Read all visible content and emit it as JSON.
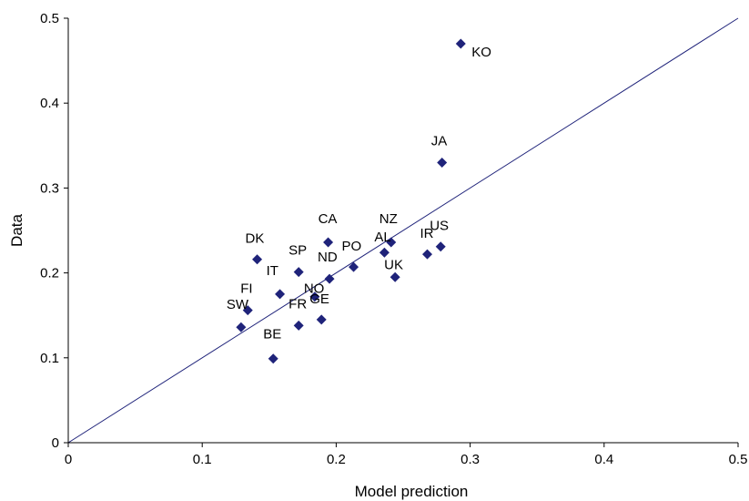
{
  "chart_data": {
    "type": "scatter",
    "title": "",
    "xlabel": "Model prediction",
    "ylabel": "Data",
    "xlim": [
      0,
      0.5
    ],
    "ylim": [
      0,
      0.5
    ],
    "x_ticks": [
      "0",
      "0.1",
      "0.2",
      "0.3",
      "0.4",
      "0.5"
    ],
    "y_ticks": [
      "0",
      "0.1",
      "0.2",
      "0.3",
      "0.4",
      "0.5"
    ],
    "grid": false,
    "marker": "diamond",
    "marker_color": "#1f237a",
    "line_color": "#1f237a",
    "reference_line": {
      "from": [
        0,
        0
      ],
      "to": [
        0.5,
        0.5
      ]
    },
    "points": [
      {
        "label": "KO",
        "x": 0.293,
        "y": 0.47
      },
      {
        "label": "JA",
        "x": 0.279,
        "y": 0.33
      },
      {
        "label": "US",
        "x": 0.278,
        "y": 0.231
      },
      {
        "label": "IR",
        "x": 0.268,
        "y": 0.222
      },
      {
        "label": "NZ",
        "x": 0.241,
        "y": 0.236
      },
      {
        "label": "AL",
        "x": 0.236,
        "y": 0.224
      },
      {
        "label": "UK",
        "x": 0.244,
        "y": 0.195
      },
      {
        "label": "CA",
        "x": 0.194,
        "y": 0.236
      },
      {
        "label": "PO",
        "x": 0.213,
        "y": 0.207
      },
      {
        "label": "ND",
        "x": 0.195,
        "y": 0.193
      },
      {
        "label": "SP",
        "x": 0.172,
        "y": 0.201
      },
      {
        "label": "NO",
        "x": 0.184,
        "y": 0.172
      },
      {
        "label": "GE",
        "x": 0.189,
        "y": 0.145
      },
      {
        "label": "FR",
        "x": 0.172,
        "y": 0.138
      },
      {
        "label": "IT",
        "x": 0.158,
        "y": 0.175
      },
      {
        "label": "DK",
        "x": 0.141,
        "y": 0.216
      },
      {
        "label": "FI",
        "x": 0.134,
        "y": 0.156
      },
      {
        "label": "SW",
        "x": 0.129,
        "y": 0.136
      },
      {
        "label": "BE",
        "x": 0.153,
        "y": 0.099
      }
    ]
  }
}
